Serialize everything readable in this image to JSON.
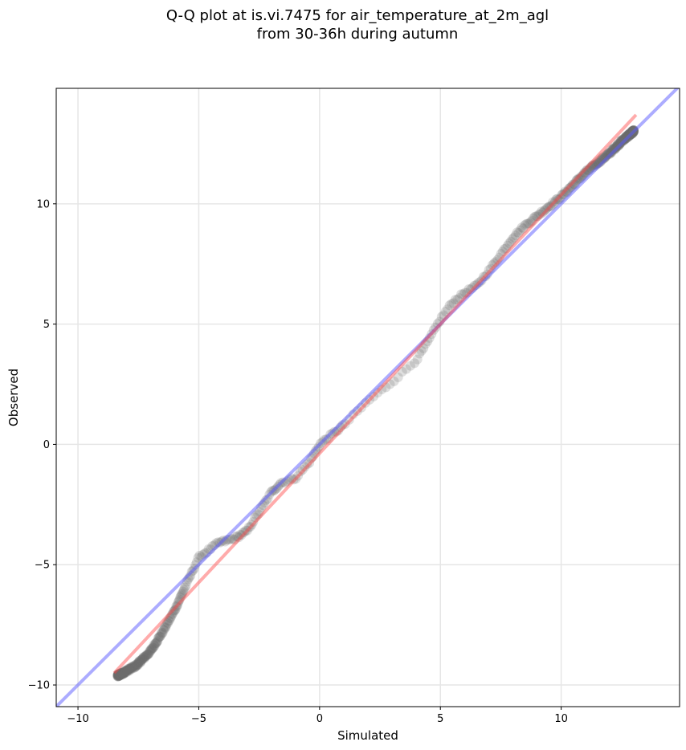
{
  "chart_data": {
    "type": "scatter",
    "title_lines": [
      "Q-Q plot at is.vi.7475 for air_temperature_at_2m_agl",
      "from 30-36h during autumn"
    ],
    "xlabel": "Simulated",
    "ylabel": "Observed",
    "xlim": [
      -10.9,
      14.9
    ],
    "ylim": [
      -10.9,
      14.8
    ],
    "xticks": [
      -10,
      -5,
      0,
      5,
      10
    ],
    "yticks": [
      -10,
      -5,
      0,
      5,
      10
    ],
    "xtick_labels": [
      "−10",
      "−5",
      "0",
      "5",
      "10"
    ],
    "ytick_labels": [
      "−10",
      "−5",
      "0",
      "5",
      "10"
    ],
    "grid": true,
    "reference_line": {
      "from": [
        -10.9,
        -10.9
      ],
      "to": [
        14.9,
        14.9
      ],
      "color": "#5a5aff",
      "opacity": 0.5
    },
    "fit_line": {
      "from": [
        -8.5,
        -9.5
      ],
      "to": [
        13.1,
        13.7
      ],
      "color": "#ff4444",
      "opacity": 0.45
    },
    "point_color": "#6e6e6e",
    "quantiles": {
      "x": [
        -8.5,
        -7.6,
        -7.0,
        -6.5,
        -6.0,
        -5.6,
        -5.0,
        -4.2,
        -3.5,
        -3.0,
        -2.5,
        -2.0,
        -1.6,
        -1.0,
        -0.4,
        0.0,
        0.5,
        1.0,
        2.0,
        3.0,
        4.0,
        4.5,
        5.0,
        5.5,
        6.0,
        6.5,
        7.0,
        7.5,
        8.0,
        8.5,
        9.0,
        9.5,
        10.0,
        10.5,
        11.0,
        11.5,
        12.0,
        12.5,
        13.1
      ],
      "y": [
        -9.7,
        -9.2,
        -8.6,
        -7.8,
        -6.9,
        -6.0,
        -4.7,
        -4.1,
        -3.9,
        -3.6,
        -2.8,
        -2.0,
        -1.6,
        -1.4,
        -0.7,
        0.0,
        0.4,
        0.8,
        1.8,
        2.6,
        3.5,
        4.3,
        5.2,
        5.9,
        6.3,
        6.6,
        7.2,
        7.9,
        8.6,
        9.1,
        9.5,
        9.9,
        10.3,
        10.8,
        11.3,
        11.7,
        12.1,
        12.6,
        13.1
      ]
    },
    "n_points": 620
  }
}
